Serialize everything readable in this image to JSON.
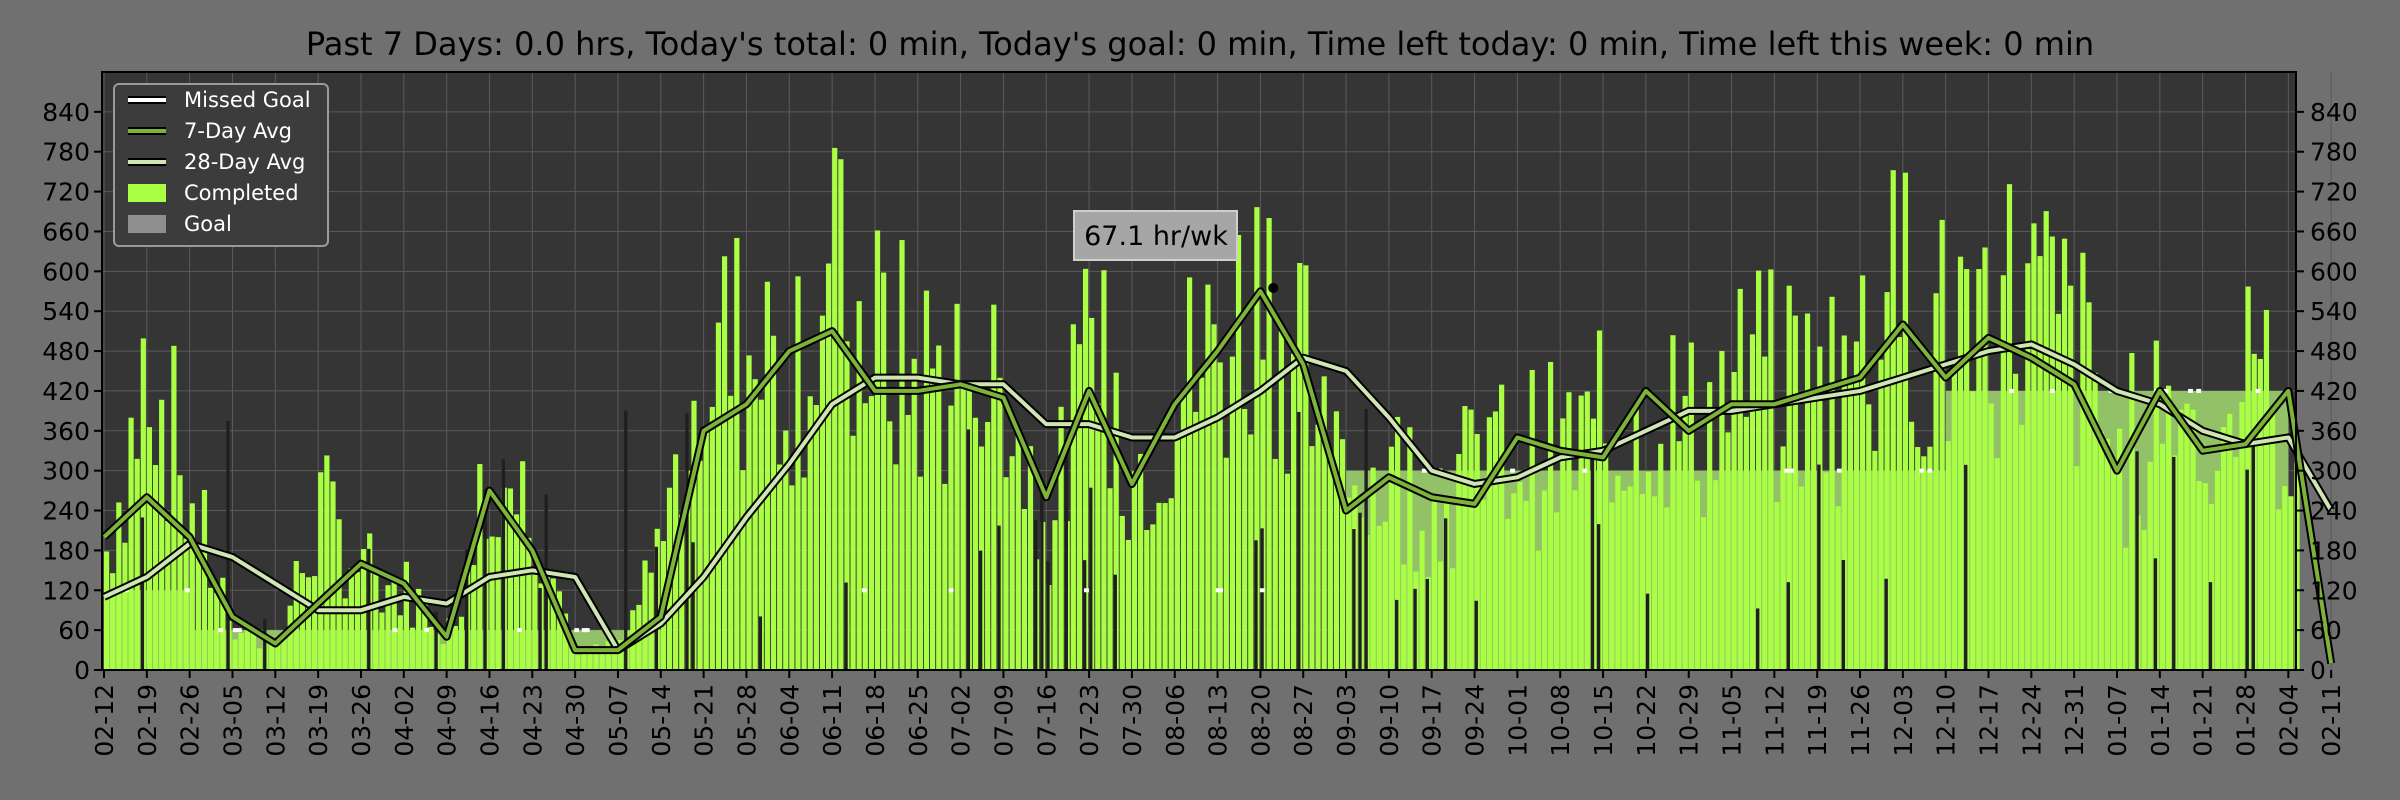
{
  "chart_data": {
    "type": "bar",
    "title": "Past 7 Days: 0.0 hrs, Today's total: 0 min, Today's goal: 0 min, Time left today: 0 min, Time left this week: 0 min",
    "xlabel": "",
    "ylabel": "",
    "ylim": [
      0,
      900
    ],
    "yticks": [
      0,
      60,
      120,
      180,
      240,
      300,
      360,
      420,
      480,
      540,
      600,
      660,
      720,
      780,
      840
    ],
    "xtick_labels": [
      "02-12",
      "02-19",
      "02-26",
      "03-05",
      "03-12",
      "03-19",
      "03-26",
      "04-02",
      "04-09",
      "04-16",
      "04-23",
      "04-30",
      "05-07",
      "05-14",
      "05-21",
      "05-28",
      "06-04",
      "06-11",
      "06-18",
      "06-25",
      "07-02",
      "07-09",
      "07-16",
      "07-23",
      "07-30",
      "08-06",
      "08-13",
      "08-20",
      "08-27",
      "09-03",
      "09-10",
      "09-17",
      "09-24",
      "10-01",
      "10-08",
      "10-15",
      "10-22",
      "10-29",
      "11-05",
      "11-12",
      "11-19",
      "11-26",
      "12-03",
      "12-10",
      "12-17",
      "12-24",
      "12-31",
      "01-07",
      "01-14",
      "01-21",
      "01-28",
      "02-04",
      "02-11"
    ],
    "grid": true,
    "legend_position": "top-left",
    "colors": {
      "completed": "#aaff44",
      "goal": "#8f8f8f",
      "goal_base": "#93c168",
      "missed": "#ffffff",
      "avg7": "#7db33a",
      "avg28": "#cfe6b4",
      "background": "#353535",
      "figure": "#707070"
    },
    "legend": [
      {
        "label": "Missed Goal",
        "kind": "line",
        "color": "#ffffff"
      },
      {
        "label": "7-Day Avg",
        "kind": "line",
        "color": "#7db33a"
      },
      {
        "label": "28-Day Avg",
        "kind": "line",
        "color": "#cfe6b4"
      },
      {
        "label": "Completed",
        "kind": "patch",
        "color": "#aaff44"
      },
      {
        "label": "Goal",
        "kind": "patch",
        "color": "#8f8f8f"
      }
    ],
    "annotation": {
      "text": "67.1 hr/wk",
      "x": "08-22",
      "y": 575
    },
    "goal_levels": [
      {
        "start": "02-12",
        "end": "02-26",
        "value": 120
      },
      {
        "start": "02-26",
        "end": "05-14",
        "value": 60
      },
      {
        "start": "05-14",
        "end": "05-19",
        "value": 0
      },
      {
        "start": "05-19",
        "end": "07-16",
        "value": 480
      },
      {
        "start": "07-16",
        "end": "08-24",
        "value": 420
      },
      {
        "start": "08-24",
        "end": "09-03",
        "value": 480
      },
      {
        "start": "09-03",
        "end": "12-10",
        "value": 300
      },
      {
        "start": "12-10",
        "end": "02-04",
        "value": 420
      },
      {
        "start": "02-04",
        "end": "02-12",
        "value": 0
      }
    ],
    "series": [
      {
        "name": "Completed (weekly sample, min/day)",
        "x": [
          "02-12",
          "02-19",
          "02-26",
          "03-05",
          "03-12",
          "03-19",
          "03-26",
          "04-02",
          "04-09",
          "04-16",
          "04-23",
          "04-30",
          "05-07",
          "05-14",
          "05-21",
          "05-28",
          "06-04",
          "06-11",
          "06-18",
          "06-25",
          "07-02",
          "07-09",
          "07-16",
          "07-23",
          "07-30",
          "08-06",
          "08-13",
          "08-20",
          "08-27",
          "09-03",
          "09-10",
          "09-17",
          "09-24",
          "10-01",
          "10-08",
          "10-15",
          "10-22",
          "10-29",
          "11-05",
          "11-12",
          "11-19",
          "11-26",
          "12-03",
          "12-10",
          "12-17",
          "12-24",
          "12-31",
          "01-07",
          "01-14",
          "01-21",
          "01-28",
          "02-04",
          "02-11"
        ],
        "values": [
          180,
          480,
          240,
          60,
          40,
          240,
          150,
          120,
          60,
          320,
          240,
          20,
          40,
          200,
          480,
          480,
          480,
          560,
          480,
          440,
          450,
          420,
          200,
          480,
          300,
          420,
          480,
          580,
          480,
          240,
          300,
          240,
          300,
          330,
          320,
          360,
          420,
          360,
          420,
          420,
          420,
          480,
          560,
          480,
          560,
          540,
          480,
          300,
          420,
          360,
          420,
          360,
          0
        ]
      },
      {
        "name": "7-Day Avg",
        "x": [
          "02-12",
          "02-19",
          "02-26",
          "03-05",
          "03-12",
          "03-19",
          "03-26",
          "04-02",
          "04-09",
          "04-16",
          "04-23",
          "04-30",
          "05-07",
          "05-14",
          "05-21",
          "05-28",
          "06-04",
          "06-11",
          "06-18",
          "06-25",
          "07-02",
          "07-09",
          "07-16",
          "07-23",
          "07-30",
          "08-06",
          "08-13",
          "08-20",
          "08-27",
          "09-03",
          "09-10",
          "09-17",
          "09-24",
          "10-01",
          "10-08",
          "10-15",
          "10-22",
          "10-29",
          "11-05",
          "11-12",
          "11-19",
          "11-26",
          "12-03",
          "12-10",
          "12-17",
          "12-24",
          "12-31",
          "01-07",
          "01-14",
          "01-21",
          "01-28",
          "02-04",
          "02-11"
        ],
        "values": [
          200,
          260,
          200,
          80,
          40,
          100,
          160,
          130,
          50,
          270,
          180,
          30,
          30,
          80,
          360,
          400,
          480,
          510,
          420,
          420,
          430,
          410,
          260,
          420,
          280,
          400,
          480,
          570,
          460,
          240,
          290,
          260,
          250,
          350,
          330,
          320,
          420,
          360,
          400,
          400,
          420,
          440,
          520,
          440,
          500,
          470,
          430,
          300,
          420,
          330,
          340,
          420,
          10
        ]
      },
      {
        "name": "28-Day Avg",
        "x": [
          "02-12",
          "02-19",
          "02-26",
          "03-05",
          "03-12",
          "03-19",
          "03-26",
          "04-02",
          "04-09",
          "04-16",
          "04-23",
          "04-30",
          "05-07",
          "05-14",
          "05-21",
          "05-28",
          "06-04",
          "06-11",
          "06-18",
          "06-25",
          "07-02",
          "07-09",
          "07-16",
          "07-23",
          "07-30",
          "08-06",
          "08-13",
          "08-20",
          "08-27",
          "09-03",
          "09-10",
          "09-17",
          "09-24",
          "10-01",
          "10-08",
          "10-15",
          "10-22",
          "10-29",
          "11-05",
          "11-12",
          "11-19",
          "11-26",
          "12-03",
          "12-10",
          "12-17",
          "12-24",
          "12-31",
          "01-07",
          "01-14",
          "01-21",
          "01-28",
          "02-04",
          "02-11"
        ],
        "values": [
          110,
          140,
          190,
          170,
          130,
          90,
          90,
          110,
          100,
          140,
          150,
          140,
          30,
          70,
          140,
          230,
          310,
          400,
          440,
          440,
          430,
          430,
          370,
          370,
          350,
          350,
          380,
          420,
          470,
          450,
          380,
          300,
          280,
          290,
          320,
          330,
          360,
          390,
          390,
          400,
          410,
          420,
          440,
          460,
          480,
          490,
          460,
          420,
          400,
          360,
          340,
          350,
          240
        ]
      }
    ]
  }
}
